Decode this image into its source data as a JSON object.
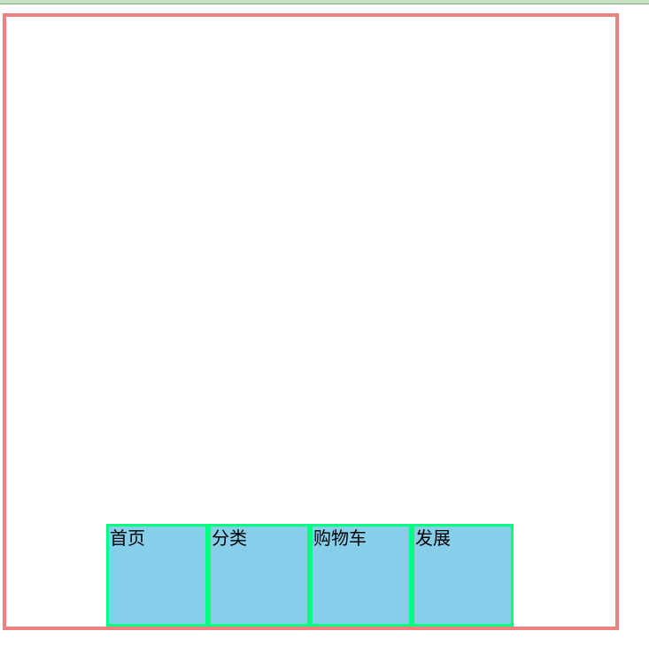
{
  "colors": {
    "container_border": "#f08080",
    "tab_background": "#87ceeb",
    "tab_border": "#00ff7f"
  },
  "nav": {
    "items": [
      {
        "label": "首页"
      },
      {
        "label": "分类"
      },
      {
        "label": "购物车"
      },
      {
        "label": "发展"
      }
    ]
  }
}
